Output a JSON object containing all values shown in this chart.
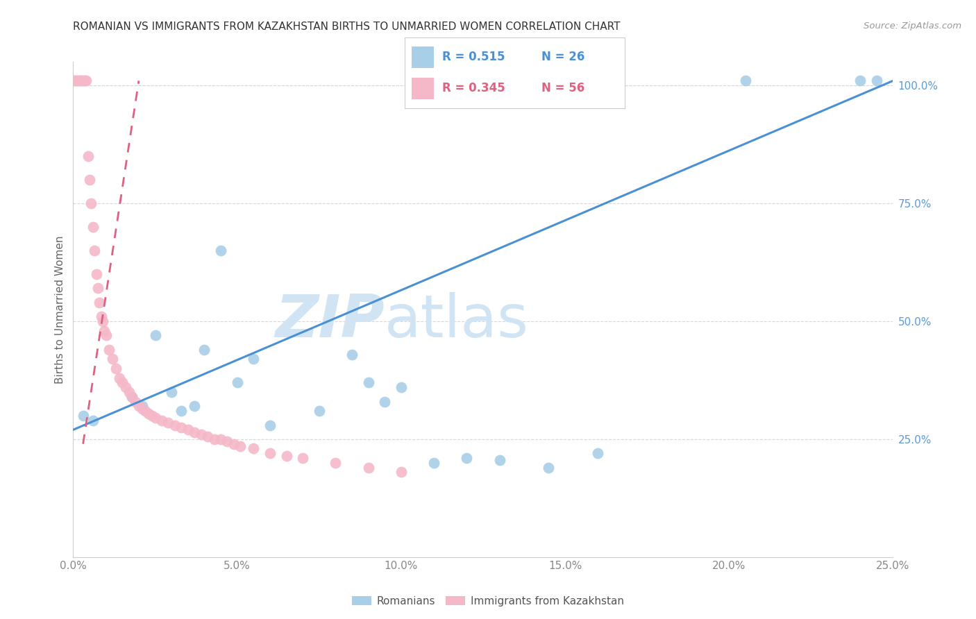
{
  "title": "ROMANIAN VS IMMIGRANTS FROM KAZAKHSTAN BIRTHS TO UNMARRIED WOMEN CORRELATION CHART",
  "source": "Source: ZipAtlas.com",
  "ylabel": "Births to Unmarried Women",
  "x_tick_labels": [
    "0.0%",
    "5.0%",
    "10.0%",
    "15.0%",
    "20.0%",
    "25.0%"
  ],
  "x_tick_values": [
    0.0,
    5.0,
    10.0,
    15.0,
    20.0,
    25.0
  ],
  "y_tick_labels_right": [
    "25.0%",
    "50.0%",
    "75.0%",
    "100.0%"
  ],
  "y_tick_values": [
    25.0,
    50.0,
    75.0,
    100.0
  ],
  "xlim": [
    0.0,
    25.0
  ],
  "ylim": [
    0.0,
    105.0
  ],
  "legend_r_blue": "R = 0.515",
  "legend_n_blue": "N = 26",
  "legend_r_pink": "R = 0.345",
  "legend_n_pink": "N = 56",
  "legend_label_blue": "Romanians",
  "legend_label_pink": "Immigrants from Kazakhstan",
  "blue_color": "#a8cfe8",
  "pink_color": "#f4b8c8",
  "blue_line_color": "#4a90d4",
  "pink_line_color": "#e06080",
  "blue_r_color": "#4a90d4",
  "pink_r_color": "#e06080",
  "watermark_zip": "ZIP",
  "watermark_atlas": "atlas",
  "watermark_color": "#d0e4f4",
  "grid_color": "#d0d8e0",
  "axis_color": "#cccccc",
  "tick_label_color": "#888888",
  "right_tick_color": "#5b9bd5",
  "ylabel_color": "#666666",
  "title_color": "#333333",
  "source_color": "#999999",
  "scatter_blue_x": [
    0.3,
    0.6,
    1.8,
    2.1,
    2.5,
    3.0,
    3.3,
    3.7,
    4.0,
    4.5,
    5.0,
    5.5,
    6.0,
    7.5,
    8.5,
    9.0,
    9.5,
    10.0,
    11.0,
    12.0,
    13.0,
    14.5,
    16.0,
    20.5,
    24.0,
    24.5
  ],
  "scatter_blue_y": [
    30.0,
    29.0,
    34.0,
    32.0,
    47.0,
    35.0,
    31.0,
    32.0,
    44.0,
    65.0,
    37.0,
    42.0,
    28.0,
    31.0,
    43.0,
    37.0,
    33.0,
    36.0,
    20.0,
    21.0,
    20.5,
    19.0,
    22.0,
    101.0,
    101.0,
    101.0
  ],
  "scatter_pink_x": [
    0.0,
    0.05,
    0.1,
    0.15,
    0.2,
    0.25,
    0.3,
    0.35,
    0.4,
    0.45,
    0.5,
    0.55,
    0.6,
    0.65,
    0.7,
    0.75,
    0.8,
    0.85,
    0.9,
    0.95,
    1.0,
    1.1,
    1.2,
    1.3,
    1.4,
    1.5,
    1.6,
    1.7,
    1.8,
    1.9,
    2.0,
    2.1,
    2.2,
    2.3,
    2.4,
    2.5,
    2.7,
    2.9,
    3.1,
    3.3,
    3.5,
    3.7,
    3.9,
    4.1,
    4.3,
    4.5,
    4.7,
    4.9,
    5.1,
    5.5,
    6.0,
    6.5,
    7.0,
    8.0,
    9.0,
    10.0
  ],
  "scatter_pink_y": [
    101.0,
    101.0,
    101.0,
    101.0,
    101.0,
    101.0,
    101.0,
    101.0,
    101.0,
    85.0,
    80.0,
    75.0,
    70.0,
    65.0,
    60.0,
    57.0,
    54.0,
    51.0,
    50.0,
    48.0,
    47.0,
    44.0,
    42.0,
    40.0,
    38.0,
    37.0,
    36.0,
    35.0,
    34.0,
    33.0,
    32.0,
    31.5,
    31.0,
    30.5,
    30.0,
    29.5,
    29.0,
    28.5,
    28.0,
    27.5,
    27.0,
    26.5,
    26.0,
    25.5,
    25.0,
    25.0,
    24.5,
    24.0,
    23.5,
    23.0,
    22.0,
    21.5,
    21.0,
    20.0,
    19.0,
    18.0
  ],
  "blue_line_x": [
    0.0,
    25.0
  ],
  "blue_line_y": [
    27.0,
    101.0
  ],
  "pink_line_x": [
    0.3,
    2.0
  ],
  "pink_line_y": [
    24.0,
    101.0
  ]
}
